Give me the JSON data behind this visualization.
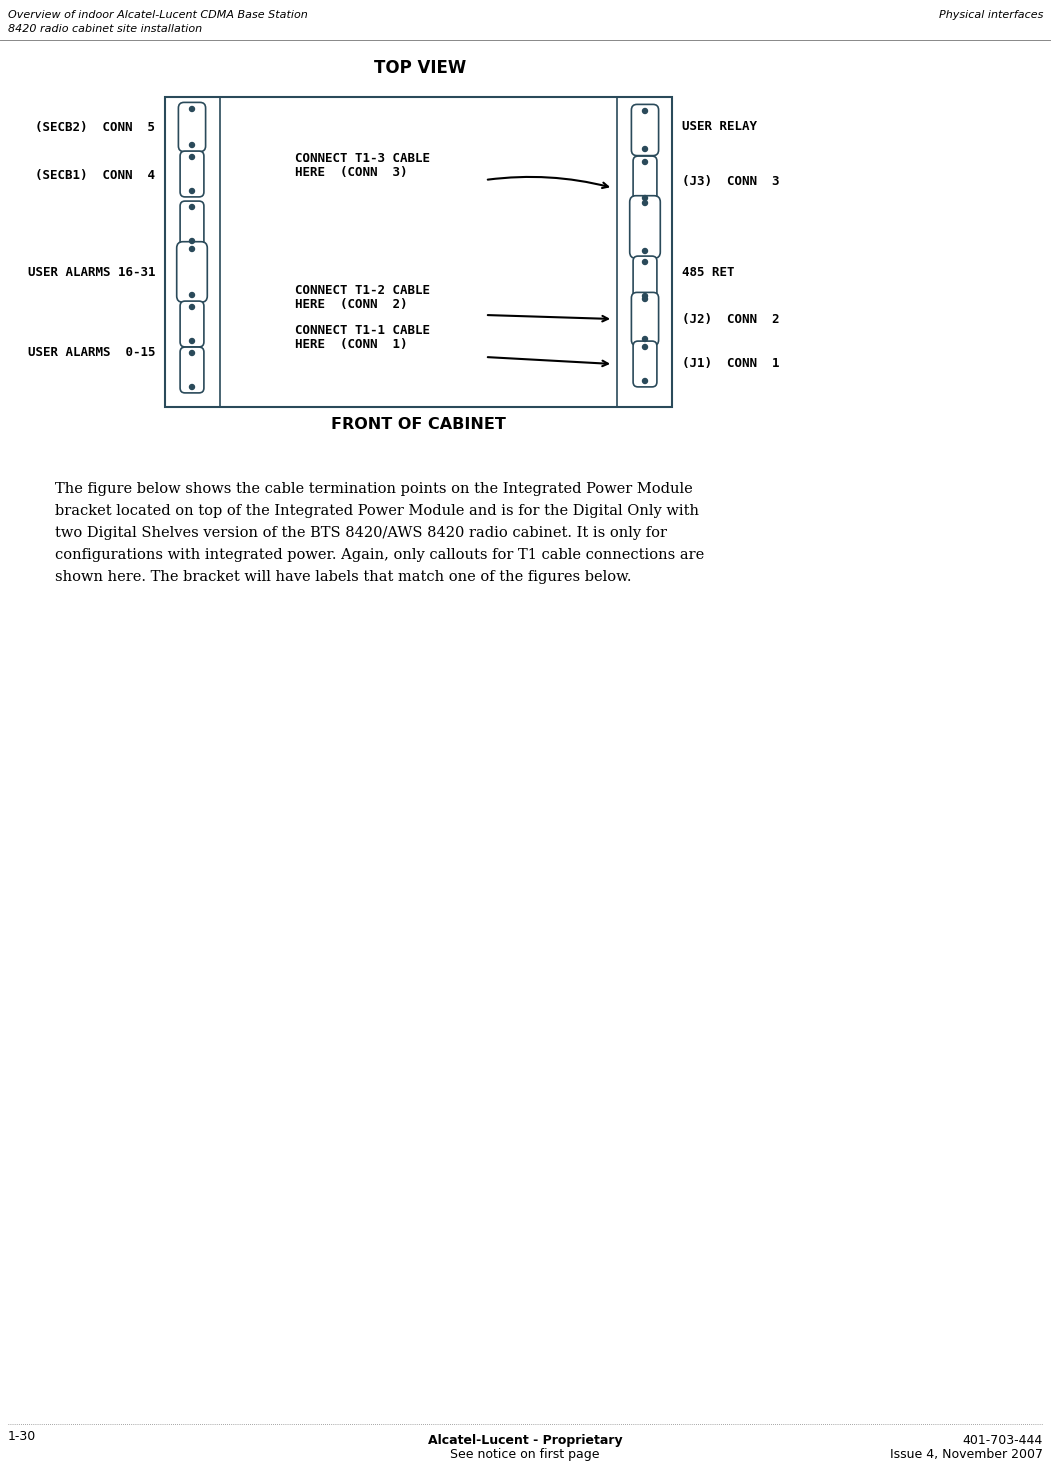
{
  "header_left_line1": "Overview of indoor Alcatel-Lucent CDMA Base Station",
  "header_left_line2": "8420 radio cabinet site installation",
  "header_right": "Physical interfaces",
  "title": "TOP VIEW",
  "front_label": "FRONT OF CABINET",
  "footer_left": "1-30",
  "footer_center_line1": "Alcatel-Lucent - Proprietary",
  "footer_center_line2": "See notice on first page",
  "footer_right_line1": "401-703-444",
  "footer_right_line2": "Issue 4, November 2007",
  "left_labels": [
    {
      "text": "(SECB2)  CONN  5"
    },
    {
      "text": "(SECB1)  CONN  4"
    },
    {
      "text": "USER ALARMS 16-31"
    },
    {
      "text": "USER ALARMS  0-15"
    }
  ],
  "right_labels": [
    {
      "text": "USER RELAY"
    },
    {
      "text": "(J3)  CONN  3"
    },
    {
      "text": "485 RET"
    },
    {
      "text": "(J2)  CONN  2"
    },
    {
      "text": "(J1)  CONN  1"
    }
  ],
  "body_text_lines": [
    "The figure below shows the cable termination points on the Integrated Power Module",
    "bracket located on top of the Integrated Power Module and is for the Digital Only with",
    "two Digital Shelves version of the BTS 8420/AWS 8420 radio cabinet. It is only for",
    "configurations with integrated power. Again, only callouts for T1 cable connections are",
    "shown here. The bracket will have labels that match one of the figures below."
  ],
  "bg_color": "#ffffff",
  "text_color": "#000000",
  "diagram_edge_color": "#2a4a5a",
  "connector_color": "#2a4a5a"
}
